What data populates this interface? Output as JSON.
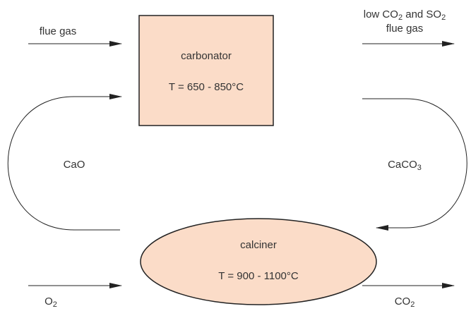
{
  "carbonator": {
    "name": "carbonator",
    "temperature": "T = 650 - 850°C"
  },
  "calciner": {
    "name": "calciner",
    "temperature": "T = 900 - 1100°C"
  },
  "streams": {
    "flue_gas_in": [
      {
        "text": "flue gas",
        "sub": false
      }
    ],
    "flue_gas_out": [
      {
        "text": "low CO",
        "sub": false
      },
      {
        "text": "2",
        "sub": true
      },
      {
        "text": " and SO",
        "sub": false
      },
      {
        "text": "2",
        "sub": true
      }
    ],
    "flue_gas_out_2": [
      {
        "text": "flue gas",
        "sub": false
      }
    ],
    "cao": [
      {
        "text": "CaO",
        "sub": false
      }
    ],
    "caco3": [
      {
        "text": "CaCO",
        "sub": false
      },
      {
        "text": "3",
        "sub": true
      }
    ],
    "o2": [
      {
        "text": "O",
        "sub": false
      },
      {
        "text": "2",
        "sub": true
      }
    ],
    "co2": [
      {
        "text": "CO",
        "sub": false
      },
      {
        "text": "2",
        "sub": true
      }
    ]
  }
}
